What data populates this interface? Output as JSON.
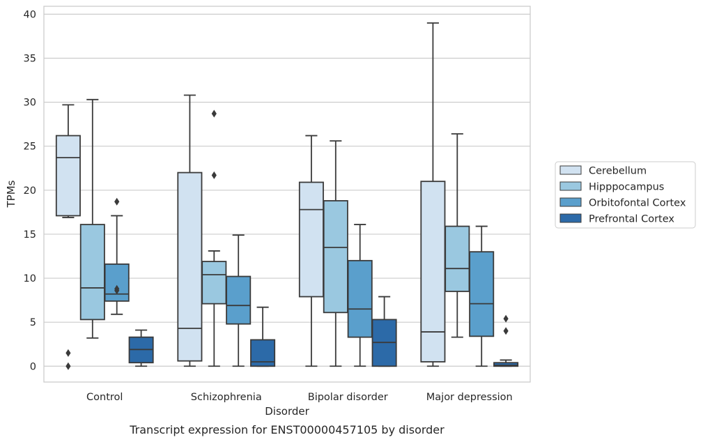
{
  "chart_data": {
    "type": "box",
    "title": "",
    "caption": "Transcript expression for ENST00000457105 by disorder",
    "xlabel": "Disorder",
    "ylabel": "TPMs",
    "ylim": [
      -1.8,
      40.9
    ],
    "yticks": [
      0,
      5,
      10,
      15,
      20,
      25,
      30,
      35,
      40
    ],
    "grid": "horizontal",
    "legend_position": "right",
    "categories": [
      "Control",
      "Schizophrenia",
      "Bipolar disorder",
      "Major depression"
    ],
    "series": [
      {
        "name": "Cerebellum",
        "color": "#d1e2f1",
        "boxes": [
          {
            "whisker_low": 16.9,
            "q1": 17.1,
            "median": 23.7,
            "q3": 26.2,
            "whisker_high": 29.7,
            "outliers": [
              1.5,
              0.0
            ]
          },
          {
            "whisker_low": 0.0,
            "q1": 0.6,
            "median": 4.3,
            "q3": 22.0,
            "whisker_high": 30.8,
            "outliers": []
          },
          {
            "whisker_low": 0.0,
            "q1": 7.9,
            "median": 17.8,
            "q3": 20.9,
            "whisker_high": 26.2,
            "outliers": []
          },
          {
            "whisker_low": 0.0,
            "q1": 0.5,
            "median": 3.9,
            "q3": 21.0,
            "whisker_high": 39.0,
            "outliers": []
          }
        ]
      },
      {
        "name": "Hipppocampus",
        "color": "#9ac8e0",
        "boxes": [
          {
            "whisker_low": 3.2,
            "q1": 5.3,
            "median": 8.9,
            "q3": 16.1,
            "whisker_high": 30.3,
            "outliers": []
          },
          {
            "whisker_low": 0.0,
            "q1": 7.1,
            "median": 10.4,
            "q3": 11.9,
            "whisker_high": 13.1,
            "outliers": [
              28.7,
              21.7
            ]
          },
          {
            "whisker_low": 0.0,
            "q1": 6.1,
            "median": 13.5,
            "q3": 18.8,
            "whisker_high": 25.6,
            "outliers": []
          },
          {
            "whisker_low": 3.3,
            "q1": 8.5,
            "median": 11.1,
            "q3": 15.9,
            "whisker_high": 26.4,
            "outliers": []
          }
        ]
      },
      {
        "name": "Orbitofontal Cortex",
        "color": "#5a9fcc",
        "boxes": [
          {
            "whisker_low": 5.9,
            "q1": 7.4,
            "median": 8.2,
            "q3": 11.6,
            "whisker_high": 17.1,
            "outliers": [
              18.7,
              8.8,
              8.6
            ]
          },
          {
            "whisker_low": 0.0,
            "q1": 4.8,
            "median": 6.9,
            "q3": 10.2,
            "whisker_high": 14.9,
            "outliers": []
          },
          {
            "whisker_low": 0.0,
            "q1": 3.3,
            "median": 6.5,
            "q3": 12.0,
            "whisker_high": 16.1,
            "outliers": []
          },
          {
            "whisker_low": 0.0,
            "q1": 3.4,
            "median": 7.1,
            "q3": 13.0,
            "whisker_high": 15.9,
            "outliers": []
          }
        ]
      },
      {
        "name": "Prefrontal Cortex",
        "color": "#2c6aa8",
        "boxes": [
          {
            "whisker_low": 0.0,
            "q1": 0.4,
            "median": 1.9,
            "q3": 3.3,
            "whisker_high": 4.1,
            "outliers": []
          },
          {
            "whisker_low": 0.0,
            "q1": 0.0,
            "median": 0.5,
            "q3": 3.0,
            "whisker_high": 6.7,
            "outliers": []
          },
          {
            "whisker_low": 0.0,
            "q1": 0.0,
            "median": 2.7,
            "q3": 5.3,
            "whisker_high": 7.9,
            "outliers": []
          },
          {
            "whisker_low": 0.0,
            "q1": 0.0,
            "median": 0.1,
            "q3": 0.4,
            "whisker_high": 0.7,
            "outliers": [
              5.4,
              4.0
            ]
          }
        ]
      }
    ]
  }
}
